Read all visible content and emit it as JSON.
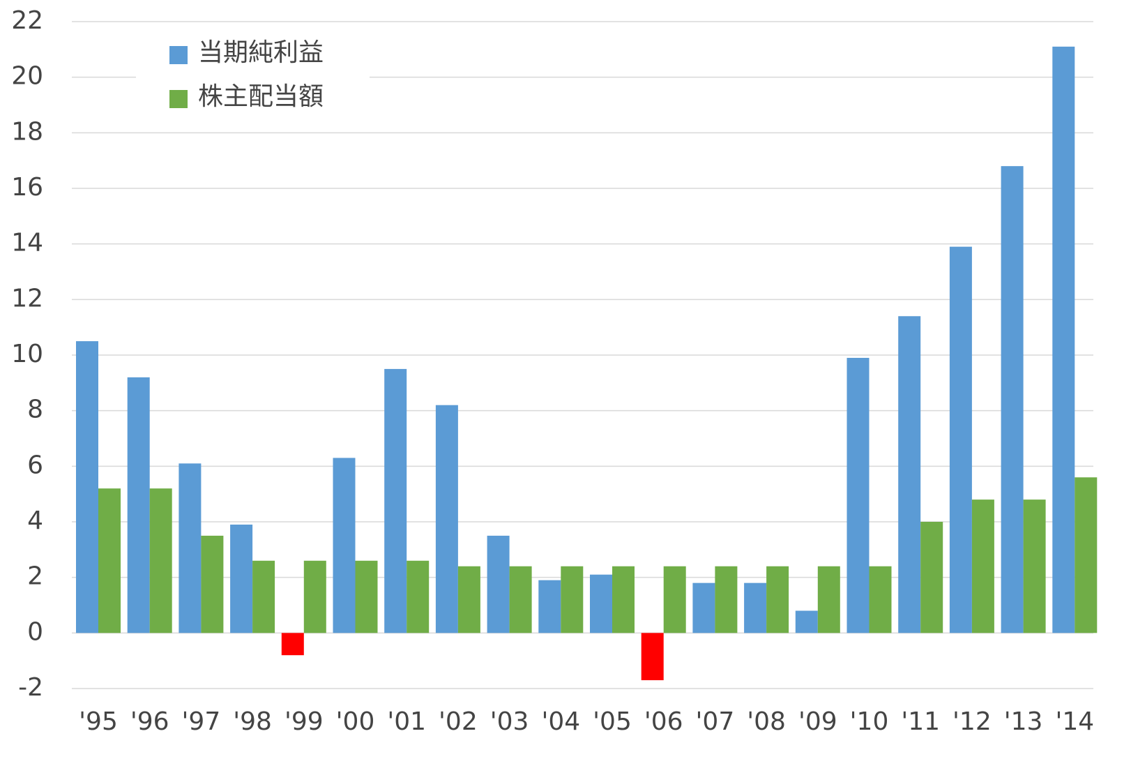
{
  "chart_data": {
    "type": "bar",
    "categories": [
      "'95",
      "'96",
      "'97",
      "'98",
      "'99",
      "'00",
      "'01",
      "'02",
      "'03",
      "'04",
      "'05",
      "'06",
      "'07",
      "'08",
      "'09",
      "'10",
      "'11",
      "'12",
      "'13",
      "'14"
    ],
    "series": [
      {
        "name": "当期純利益",
        "color": "#5b9bd5",
        "values": [
          10.5,
          9.2,
          6.1,
          3.9,
          -0.8,
          6.3,
          9.5,
          8.2,
          3.5,
          1.9,
          2.1,
          -1.7,
          1.8,
          1.8,
          0.8,
          9.9,
          11.4,
          13.9,
          16.8,
          21.1
        ]
      },
      {
        "name": "株主配当額",
        "color": "#70ad47",
        "values": [
          5.2,
          5.2,
          3.5,
          2.6,
          2.6,
          2.6,
          2.6,
          2.4,
          2.4,
          2.4,
          2.4,
          2.4,
          2.4,
          2.4,
          2.4,
          2.4,
          4.0,
          4.8,
          4.8,
          5.6
        ]
      }
    ],
    "negative_color": "#ff0000",
    "ylim": [
      -2,
      22
    ],
    "yticks": [
      -2,
      0,
      2,
      4,
      6,
      8,
      10,
      12,
      14,
      16,
      18,
      20,
      22
    ],
    "grid": true,
    "legend": "top-left"
  }
}
